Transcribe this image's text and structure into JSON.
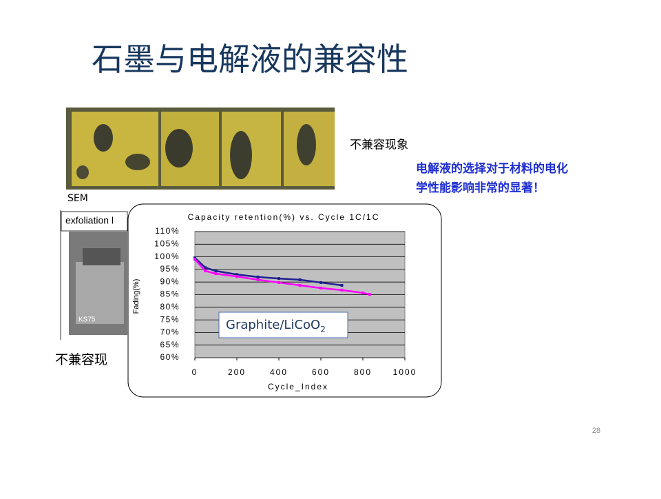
{
  "title": "石墨与电解液的兼容性",
  "photo_caption": "不兼容现象",
  "note_lines": [
    "电解液的选择对于材料的电化",
    "学性能影响非常的显著！"
  ],
  "sem_label": "SEM",
  "sem_box_label": "exfoliation l",
  "sem_image_label": "KS75",
  "sem_caption": "不兼容现",
  "page_number": "28",
  "chart_data": {
    "type": "line",
    "title": "Capacity retention(%) vs. Cycle 1C/1C",
    "x_label": "Cycle_Index",
    "y_label": "Fading(%)",
    "annotation": {
      "text": "Graphite/LiCoO",
      "subscript": "2"
    },
    "series": [
      {
        "color": "#1f1f8f",
        "x": [
          0,
          50,
          100,
          200,
          300,
          400,
          500,
          600,
          700
        ],
        "values": [
          99.6,
          95.7,
          94.4,
          93,
          92,
          91.4,
          90.9,
          89.8,
          88.7
        ]
      },
      {
        "color": "#ff00ff",
        "x": [
          0,
          50,
          100,
          200,
          300,
          400,
          500,
          600,
          700,
          800,
          833
        ],
        "values": [
          99,
          94.4,
          93.3,
          92.2,
          90.9,
          89.8,
          88.7,
          87.6,
          86.8,
          85.7,
          85.1
        ]
      }
    ],
    "xlim": [
      0,
      1000
    ],
    "xticks": [
      0,
      200,
      400,
      600,
      800,
      1000
    ],
    "ylim": [
      60,
      110
    ],
    "yticks": [
      {
        "value": 60,
        "label": "60%"
      },
      {
        "value": 65,
        "label": "65%"
      },
      {
        "value": 70,
        "label": "70%"
      },
      {
        "value": 75,
        "label": "75%"
      },
      {
        "value": 80,
        "label": "80%"
      },
      {
        "value": 85,
        "label": "85%"
      },
      {
        "value": 90,
        "label": "90%"
      },
      {
        "value": 95,
        "label": "95%"
      },
      {
        "value": 100,
        "label": "100%"
      },
      {
        "value": 105,
        "label": "105%"
      },
      {
        "value": 110,
        "label": "110%"
      }
    ],
    "grid": true,
    "plot_background": "#c0c0c0"
  }
}
